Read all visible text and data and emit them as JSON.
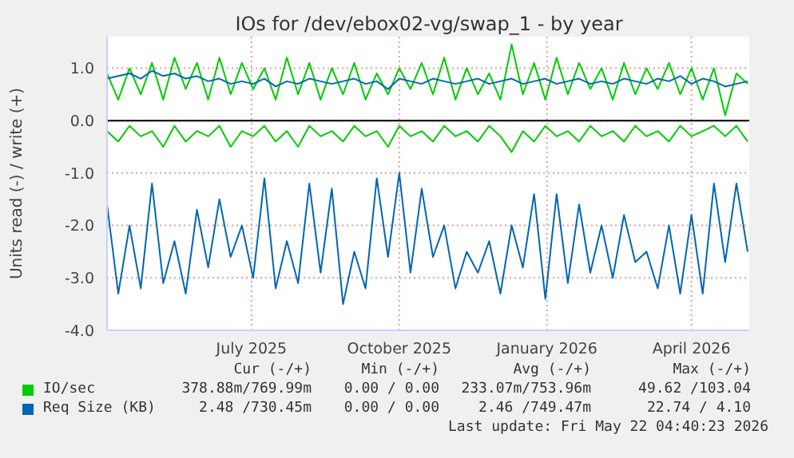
{
  "chart_data": {
    "type": "line",
    "title": "IOs for /dev/ebox02-vg/swap_1 - by year",
    "ylabel": "Units read (-) / write (+)",
    "x": [
      "2025-04-17",
      "2025-04-24",
      "2025-05-01",
      "2025-05-08",
      "2025-05-15",
      "2025-05-22",
      "2025-05-29",
      "2025-06-05",
      "2025-06-12",
      "2025-06-19",
      "2025-06-26",
      "2025-07-03",
      "2025-07-10",
      "2025-07-17",
      "2025-07-24",
      "2025-07-31",
      "2025-08-07",
      "2025-08-14",
      "2025-08-21",
      "2025-08-28",
      "2025-09-04",
      "2025-09-11",
      "2025-09-18",
      "2025-09-25",
      "2025-10-02",
      "2025-10-09",
      "2025-10-16",
      "2025-10-23",
      "2025-10-30",
      "2025-11-06",
      "2025-11-13",
      "2025-11-20",
      "2025-11-27",
      "2025-12-04",
      "2025-12-11",
      "2025-12-18",
      "2025-12-25",
      "2026-01-01",
      "2026-01-08",
      "2026-01-15",
      "2026-01-22",
      "2026-01-29",
      "2026-02-05",
      "2026-02-12",
      "2026-02-19",
      "2026-02-26",
      "2026-03-05",
      "2026-03-12",
      "2026-03-19",
      "2026-03-26",
      "2026-04-02",
      "2026-04-09",
      "2026-04-16",
      "2026-04-23",
      "2026-04-30",
      "2026-05-07",
      "2026-05-14",
      "2026-05-21"
    ],
    "series": [
      {
        "name": "IO/sec",
        "color": "#00cc00",
        "values": [
          0.9,
          0.4,
          1.0,
          0.5,
          1.1,
          0.4,
          1.2,
          0.6,
          1.1,
          0.4,
          1.2,
          0.5,
          1.1,
          0.6,
          1.0,
          0.4,
          1.2,
          0.5,
          1.1,
          0.4,
          1.0,
          0.5,
          1.1,
          0.4,
          0.9,
          0.5,
          1.0,
          0.6,
          1.1,
          0.5,
          1.2,
          0.4,
          1.0,
          0.5,
          0.9,
          0.4,
          1.45,
          0.5,
          1.1,
          0.4,
          1.2,
          0.5,
          1.1,
          0.6,
          1.0,
          0.4,
          1.1,
          0.5,
          1.0,
          0.6,
          1.1,
          0.5,
          1.0,
          0.4,
          1.0,
          0.1,
          0.9,
          0.7
        ]
      },
      {
        "color": "#00cc00",
        "values": [
          -0.2,
          -0.4,
          -0.1,
          -0.3,
          -0.2,
          -0.5,
          -0.1,
          -0.4,
          -0.2,
          -0.3,
          -0.1,
          -0.5,
          -0.2,
          -0.3,
          -0.1,
          -0.4,
          -0.2,
          -0.5,
          -0.1,
          -0.3,
          -0.2,
          -0.4,
          -0.1,
          -0.3,
          -0.2,
          -0.5,
          -0.1,
          -0.3,
          -0.2,
          -0.4,
          -0.1,
          -0.3,
          -0.2,
          -0.4,
          -0.1,
          -0.3,
          -0.6,
          -0.2,
          -0.4,
          -0.1,
          -0.3,
          -0.2,
          -0.4,
          -0.1,
          -0.3,
          -0.2,
          -0.4,
          -0.1,
          -0.3,
          -0.2,
          -0.4,
          -0.1,
          -0.3,
          -0.2,
          -0.1,
          -0.3,
          -0.1,
          -0.4
        ]
      },
      {
        "name": "Req Size (KB)",
        "color": "#0066b3",
        "values": [
          0.8,
          0.85,
          0.9,
          0.8,
          0.95,
          0.85,
          0.9,
          0.8,
          0.85,
          0.75,
          0.8,
          0.7,
          0.75,
          0.7,
          0.8,
          0.65,
          0.75,
          0.7,
          0.8,
          0.75,
          0.7,
          0.75,
          0.8,
          0.7,
          0.75,
          0.6,
          0.8,
          0.75,
          0.7,
          0.8,
          0.75,
          0.7,
          0.75,
          0.8,
          0.7,
          0.75,
          0.8,
          0.7,
          0.75,
          0.8,
          0.7,
          0.75,
          0.8,
          0.7,
          0.75,
          0.7,
          0.8,
          0.75,
          0.7,
          0.8,
          0.75,
          0.85,
          0.7,
          0.8,
          0.75,
          0.65,
          0.7,
          0.75
        ]
      },
      {
        "color": "#0066b3",
        "values": [
          -1.6,
          -3.3,
          -2.0,
          -3.2,
          -1.2,
          -3.1,
          -2.3,
          -3.3,
          -1.7,
          -2.8,
          -1.5,
          -2.6,
          -2.0,
          -3.0,
          -1.1,
          -3.2,
          -2.3,
          -3.1,
          -1.2,
          -2.9,
          -1.3,
          -3.5,
          -2.5,
          -3.2,
          -1.1,
          -2.6,
          -1.0,
          -2.9,
          -1.3,
          -2.6,
          -2.0,
          -3.2,
          -2.5,
          -2.9,
          -2.3,
          -3.3,
          -2.0,
          -2.8,
          -1.4,
          -3.4,
          -1.4,
          -3.1,
          -1.6,
          -2.9,
          -2.0,
          -3.0,
          -1.8,
          -2.7,
          -2.5,
          -3.2,
          -2.0,
          -3.3,
          -1.8,
          -3.3,
          -1.2,
          -2.7,
          -1.2,
          -2.5
        ]
      }
    ],
    "xlim": [
      "2025-04-17",
      "2026-05-22"
    ],
    "xticks": [
      {
        "value": "2025-07-16",
        "label": "July 2025"
      },
      {
        "value": "2025-10-16",
        "label": "October 2025"
      },
      {
        "value": "2026-01-16",
        "label": "January 2026"
      },
      {
        "value": "2026-04-16",
        "label": "April 2026"
      }
    ],
    "ylim": [
      -4,
      1.6
    ],
    "yticks": [
      {
        "value": -4,
        "label": "-4.0"
      },
      {
        "value": -3,
        "label": "-3.0"
      },
      {
        "value": -2,
        "label": "-2.0"
      },
      {
        "value": -1,
        "label": "-1.0"
      },
      {
        "value": 0,
        "label": "0.0"
      },
      {
        "value": 1,
        "label": "1.0"
      }
    ],
    "ref_lines": [
      {
        "axis": "y",
        "value": 0,
        "color": "#000000"
      }
    ],
    "grid": true,
    "legend": "bottom",
    "marker": "none",
    "line_style": "solid",
    "annotations": [
      "Cur (-/+)",
      "Min (-/+)",
      "Avg (-/+)",
      "Max (-/+)",
      "378.88m/769.99m",
      "0.00 / 0.00",
      "233.07m/753.96m",
      "49.62 /103.04",
      "2.48 /730.45m",
      "0.00 / 0.00",
      "2.46 /749.47m",
      "22.74 / 4.10",
      "Last update: Fri May 22 04:40:23 2026"
    ]
  }
}
